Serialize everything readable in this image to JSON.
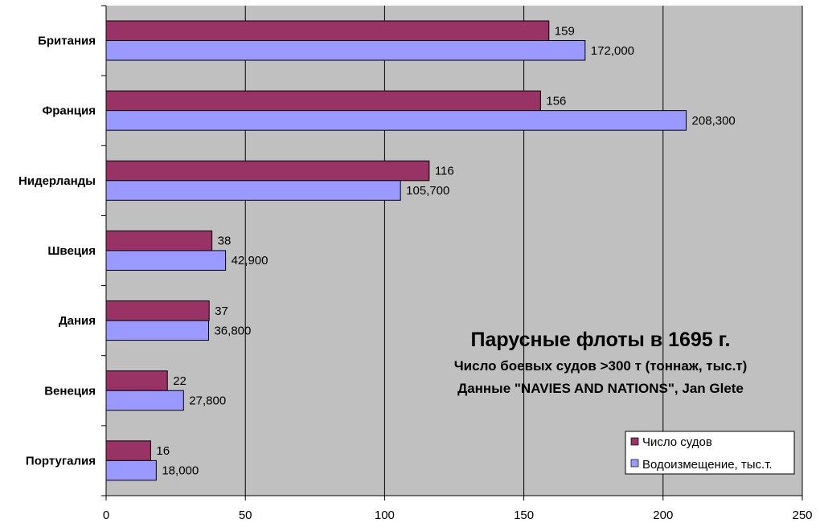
{
  "chart_data": {
    "type": "bar",
    "orientation": "horizontal",
    "title": "Парусные флоты в 1695 г.",
    "subtitles": [
      "Число боевых судов >300 т (тоннаж, тыс.т)",
      "Данные \"NAVIES AND NATIONS\", Jan Glete"
    ],
    "categories": [
      "Британия",
      "Франция",
      "Нидерланды",
      "Швеция",
      "Дания",
      "Венеция",
      "Португалия"
    ],
    "series": [
      {
        "name": "Число судов",
        "color": "#993366",
        "values": [
          159,
          156,
          116,
          38,
          37,
          22,
          16
        ],
        "labels": [
          "159",
          "156",
          "116",
          "38",
          "37",
          "22",
          "16"
        ]
      },
      {
        "name": "Водоизмещение, тыс.т.",
        "color": "#9999ff",
        "values": [
          172,
          208.3,
          105.7,
          42.9,
          36.8,
          27.8,
          18
        ],
        "labels": [
          "172,000",
          "208,300",
          "105,700",
          "42,900",
          "36,800",
          "27,800",
          "18,000"
        ]
      }
    ],
    "xlim": [
      0,
      250
    ],
    "xticks": [
      "0",
      "50",
      "100",
      "150",
      "200",
      "250"
    ],
    "xtick_values": [
      0,
      50,
      100,
      150,
      200,
      250
    ],
    "grid": true,
    "legend_position": "bottom-right",
    "plot_background": "#c0c0c0"
  }
}
